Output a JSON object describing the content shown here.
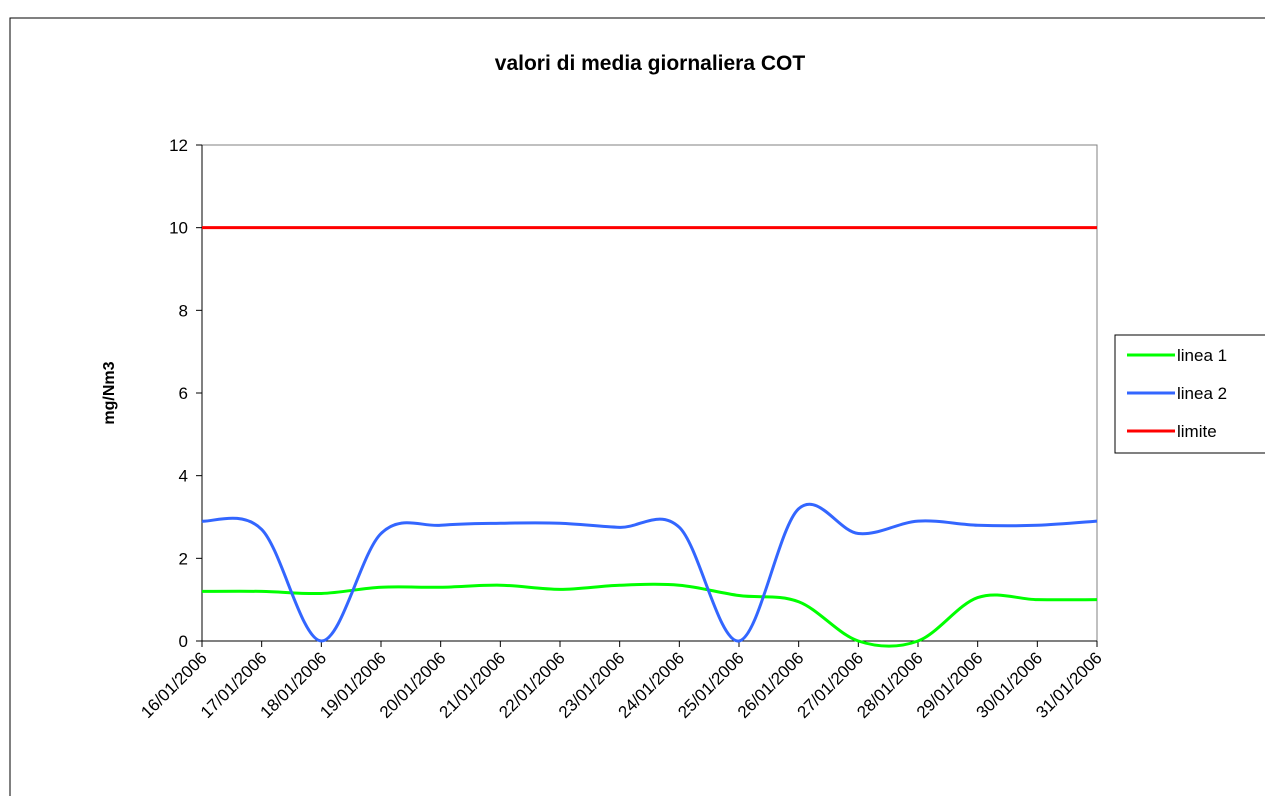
{
  "chart_data": {
    "type": "line",
    "title": "valori di media giornaliera  COT",
    "y_label": "mg/Nm3",
    "categories": [
      "16/01/2006",
      "17/01/2006",
      "18/01/2006",
      "19/01/2006",
      "20/01/2006",
      "21/01/2006",
      "22/01/2006",
      "23/01/2006",
      "24/01/2006",
      "25/01/2006",
      "26/01/2006",
      "27/01/2006",
      "28/01/2006",
      "29/01/2006",
      "30/01/2006",
      "31/01/2006"
    ],
    "series": [
      {
        "name": "linea 1",
        "color": "#00ff00",
        "values": [
          1.2,
          1.2,
          1.15,
          1.3,
          1.3,
          1.35,
          1.25,
          1.35,
          1.35,
          1.1,
          0.95,
          0,
          0,
          1.05,
          1.0,
          1.0
        ]
      },
      {
        "name": "linea 2",
        "color": "#3366ff",
        "values": [
          2.9,
          2.7,
          0,
          2.6,
          2.8,
          2.85,
          2.85,
          2.75,
          2.75,
          0,
          3.2,
          2.6,
          2.9,
          2.8,
          2.8,
          2.9
        ]
      },
      {
        "name": "limite",
        "color": "#ff0000",
        "values": [
          10,
          10,
          10,
          10,
          10,
          10,
          10,
          10,
          10,
          10,
          10,
          10,
          10,
          10,
          10,
          10
        ]
      }
    ],
    "ylim": [
      0,
      12
    ],
    "yticks": [
      0,
      2,
      4,
      6,
      8,
      10,
      12
    ],
    "smooth": true,
    "legend": "right"
  }
}
